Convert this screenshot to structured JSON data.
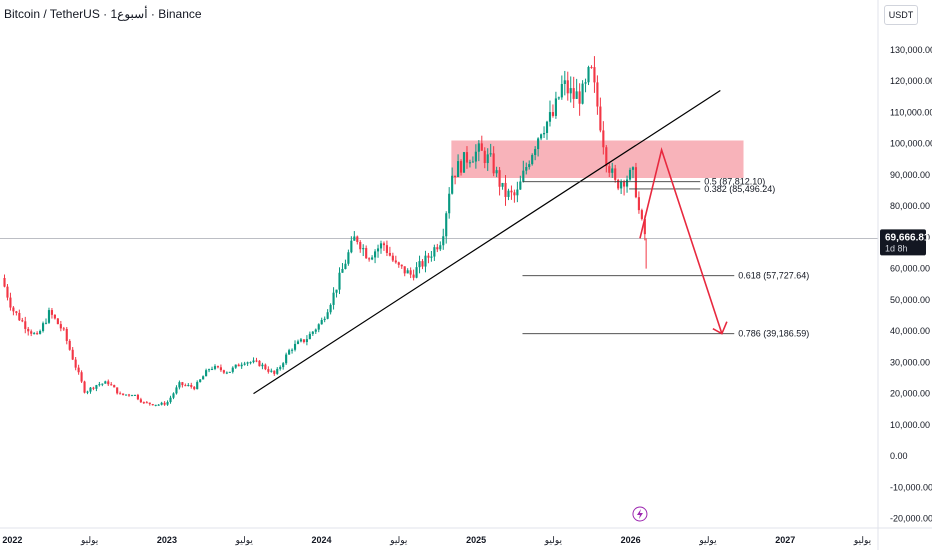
{
  "header": {
    "title": "Bitcoin / TetherUS · 1أسبوع · Binance",
    "currency": "USDT"
  },
  "chart_data": {
    "type": "candlestick",
    "price_ticks": [
      "130,000.00",
      "120,000.00",
      "110,000.00",
      "100,000.00",
      "90,000.00",
      "80,000.00",
      "70,000.00",
      "60,000.00",
      "50,000.00",
      "40,000.00",
      "30,000.00",
      "20,000.00",
      "10,000.00",
      "0.00",
      "-10,000.00",
      "-20,000.00"
    ],
    "price_tick_values": [
      130000,
      120000,
      110000,
      100000,
      90000,
      80000,
      70000,
      60000,
      50000,
      40000,
      30000,
      20000,
      10000,
      0,
      -10000,
      -20000
    ],
    "ylim": [
      -23000,
      137000
    ],
    "x_ticks": [
      "2022",
      "يوليو",
      "2023",
      "يوليو",
      "2024",
      "يوليو",
      "2025",
      "يوليو",
      "2026",
      "يوليو",
      "2027",
      "يوليو"
    ],
    "x_tick_bold": [
      true,
      false,
      true,
      false,
      true,
      false,
      true,
      false,
      true,
      false,
      true,
      false
    ],
    "xlim": [
      2021.92,
      2027.6
    ],
    "current_price": {
      "value": 69666.81,
      "label": "69,666.81",
      "countdown": "1d 8h"
    },
    "colors": {
      "up": "#089981",
      "down": "#f23645",
      "zone": "#f7a6ae",
      "arrow": "#e8293f",
      "trend": "#000000",
      "fib": "#3a3a3a"
    },
    "candles_anchor_prices": [
      [
        2021.93,
        57000
      ],
      [
        2022.0,
        47000
      ],
      [
        2022.08,
        42000
      ],
      [
        2022.16,
        38000
      ],
      [
        2022.24,
        46000
      ],
      [
        2022.33,
        40000
      ],
      [
        2022.4,
        30000
      ],
      [
        2022.47,
        20500
      ],
      [
        2022.55,
        23000
      ],
      [
        2022.62,
        23500
      ],
      [
        2022.7,
        19500
      ],
      [
        2022.78,
        20000
      ],
      [
        2022.85,
        17000
      ],
      [
        2022.95,
        16500
      ],
      [
        2023.0,
        17000
      ],
      [
        2023.08,
        23000
      ],
      [
        2023.18,
        22000
      ],
      [
        2023.28,
        28500
      ],
      [
        2023.4,
        27000
      ],
      [
        2023.5,
        30500
      ],
      [
        2023.6,
        29500
      ],
      [
        2023.7,
        26000
      ],
      [
        2023.8,
        34500
      ],
      [
        2023.9,
        37500
      ],
      [
        2024.0,
        43000
      ],
      [
        2024.08,
        52000
      ],
      [
        2024.16,
        63000
      ],
      [
        2024.22,
        70500
      ],
      [
        2024.3,
        64000
      ],
      [
        2024.4,
        68000
      ],
      [
        2024.48,
        61000
      ],
      [
        2024.58,
        58000
      ],
      [
        2024.68,
        63000
      ],
      [
        2024.78,
        70000
      ],
      [
        2024.84,
        90000
      ],
      [
        2024.95,
        96000
      ],
      [
        2025.02,
        97500
      ],
      [
        2025.1,
        94000
      ],
      [
        2025.18,
        84000
      ],
      [
        2025.26,
        83000
      ],
      [
        2025.34,
        95000
      ],
      [
        2025.42,
        105000
      ],
      [
        2025.5,
        109000
      ],
      [
        2025.56,
        119000
      ],
      [
        2025.63,
        115000
      ],
      [
        2025.7,
        116000
      ],
      [
        2025.74,
        124000
      ],
      [
        2025.8,
        108000
      ],
      [
        2025.84,
        96000
      ],
      [
        2025.9,
        87000
      ],
      [
        2025.96,
        89000
      ],
      [
        2026.02,
        90000
      ],
      [
        2026.06,
        76000
      ],
      [
        2026.1,
        69666
      ]
    ],
    "trendline": [
      [
        2023.56,
        20000
      ],
      [
        2026.58,
        117000
      ]
    ],
    "zone": {
      "x0": 2024.84,
      "x1": 2026.73,
      "y0": 89000,
      "y1": 101000
    },
    "arrow_path": [
      [
        2026.06,
        69666
      ],
      [
        2026.2,
        98000
      ],
      [
        2026.59,
        39186
      ]
    ],
    "fib_levels": [
      {
        "label": "0.5 (87,812.10)",
        "value": 87812.1,
        "x0": 2025.3,
        "x1": 2026.45
      },
      {
        "label": "0.382 (85,496.24)",
        "value": 85496.24,
        "x0": 2025.99,
        "x1": 2026.45
      },
      {
        "label": "0.618 (57,727.64)",
        "value": 57727.64,
        "x0": 2025.3,
        "x1": 2026.67
      },
      {
        "label": "0.786 (39,186.59)",
        "value": 39186.59,
        "x0": 2025.3,
        "x1": 2026.67
      }
    ],
    "bottom_icon": "lightning-icon"
  }
}
